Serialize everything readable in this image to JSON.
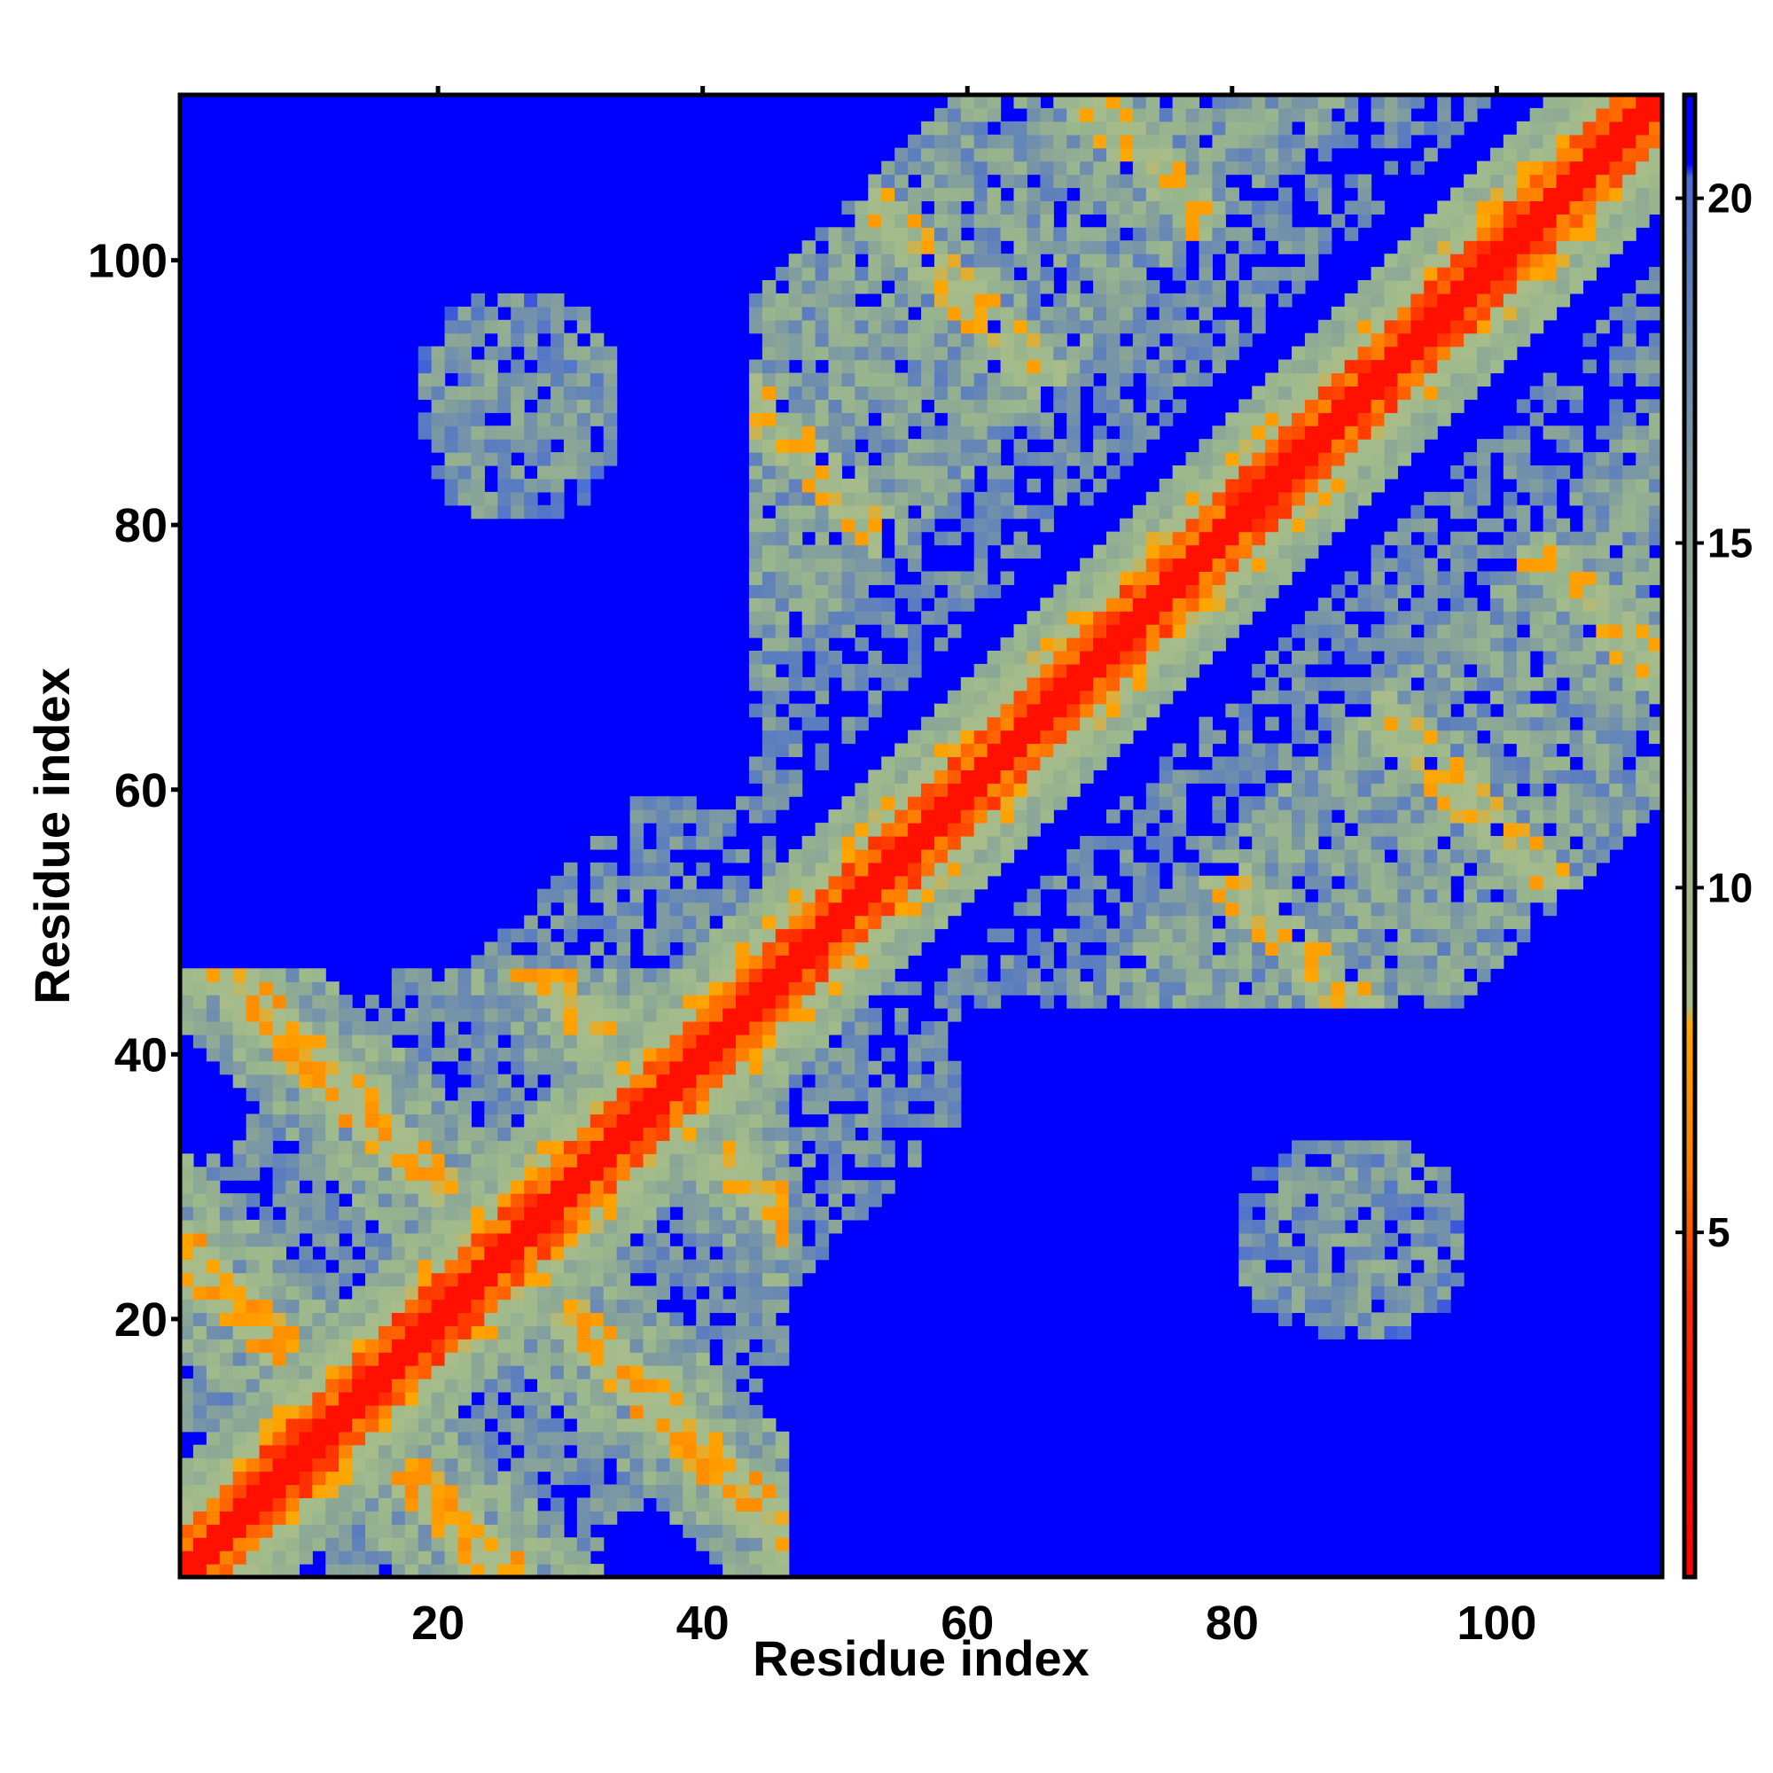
{
  "chart_data": {
    "type": "heatmap",
    "title": "",
    "xlabel": "Residue index",
    "ylabel": "Residue index",
    "xlim": [
      0.5,
      112.5
    ],
    "ylim": [
      0.5,
      112.5
    ],
    "n_residues": 112,
    "x_ticks": [
      20,
      40,
      60,
      80,
      100
    ],
    "y_ticks": [
      20,
      40,
      60,
      80,
      100
    ],
    "x_tick_labels": [
      "20",
      "40",
      "60",
      "80",
      "100"
    ],
    "y_tick_labels": [
      "20",
      "40",
      "60",
      "80",
      "100"
    ],
    "colorbar": {
      "range": [
        0,
        21.5
      ],
      "ticks": [
        5,
        10,
        15,
        20
      ],
      "tick_labels": [
        "5",
        "10",
        "15",
        "20"
      ],
      "stops": [
        {
          "value": 0,
          "color": "#ff0000"
        },
        {
          "value": 4,
          "color": "#ff2a00"
        },
        {
          "value": 6,
          "color": "#ff8000"
        },
        {
          "value": 8,
          "color": "#ffa600"
        },
        {
          "value": 8.3,
          "color": "#a8bc8a"
        },
        {
          "value": 11,
          "color": "#9db98c"
        },
        {
          "value": 15,
          "color": "#8aa597"
        },
        {
          "value": 19,
          "color": "#5a7cc0"
        },
        {
          "value": 20.3,
          "color": "#4a6ed4"
        },
        {
          "value": 20.5,
          "color": "#0000ff"
        },
        {
          "value": 21.5,
          "color": "#0000ff"
        }
      ]
    },
    "background_value": 21,
    "background_color": "#0000ff",
    "grid": false,
    "legend": "colorbar-right",
    "structure_note_features": {
      "diagonal_band_width": 8,
      "contact_regions": [
        {
          "x": [
            1,
            45
          ],
          "y": [
            1,
            45
          ],
          "pattern": "helical crossings"
        },
        {
          "x": [
            45,
            112
          ],
          "y": [
            45,
            112
          ],
          "pattern": "helical crossings"
        },
        {
          "x": [
            18,
            33
          ],
          "y": [
            82,
            98
          ],
          "pattern": "isolated patch"
        },
        {
          "x": [
            82,
            98
          ],
          "y": [
            18,
            33
          ],
          "pattern": "isolated patch"
        }
      ]
    }
  }
}
